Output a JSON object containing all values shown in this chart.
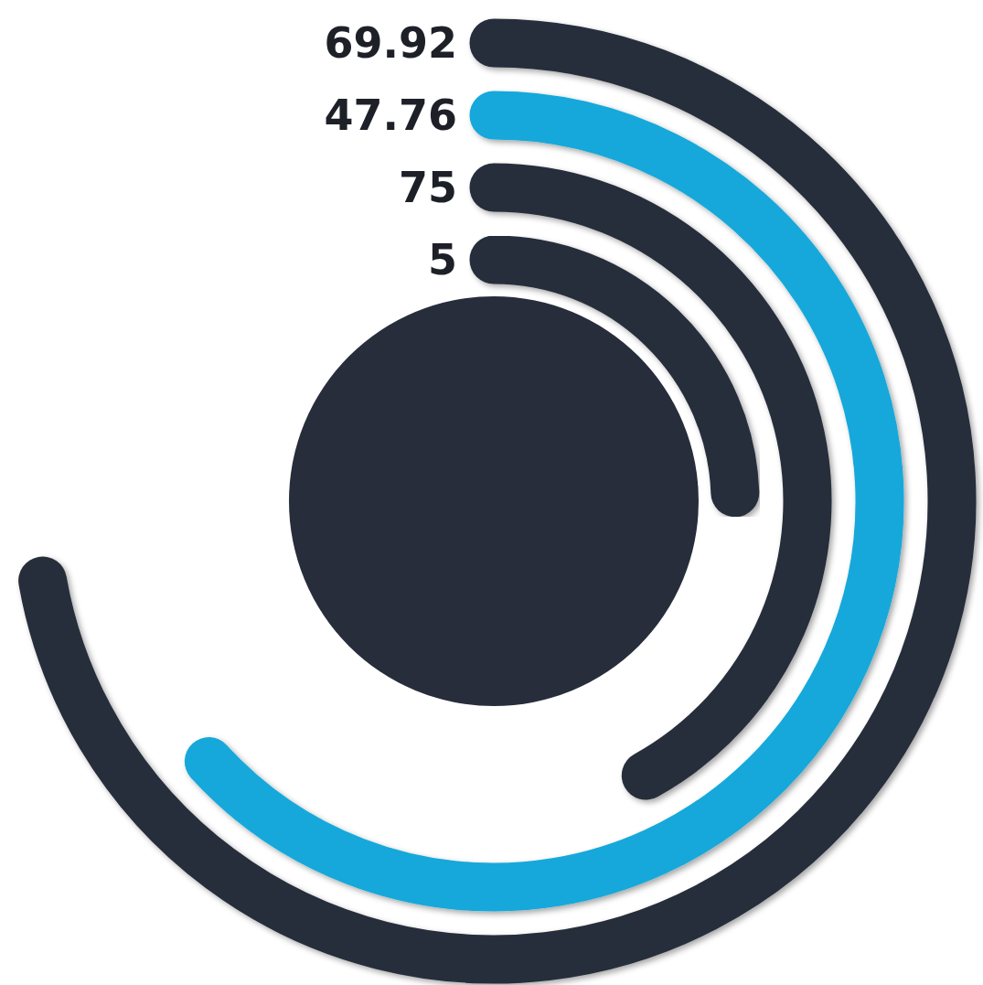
{
  "chart_data": {
    "type": "other",
    "categories": [
      null,
      null,
      null,
      null
    ],
    "values": [
      69.92,
      47.76,
      75,
      5
    ],
    "data_labels": true,
    "colors": [
      "#272d3a",
      "#13a8da",
      "#272d3a",
      "#272d3a"
    ]
  }
}
